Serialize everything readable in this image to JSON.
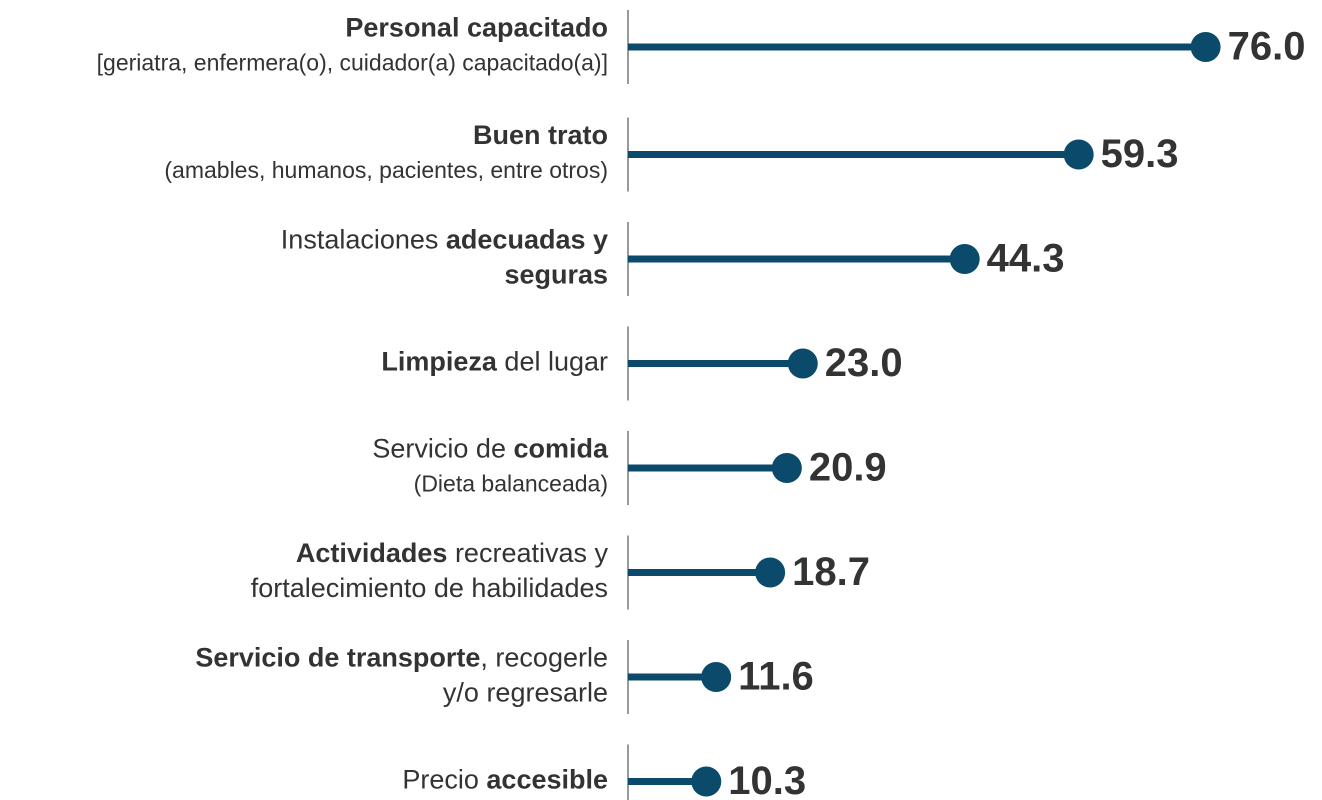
{
  "chart_data": {
    "type": "lollipop",
    "color": "#0b4a6b",
    "xlim": [
      0,
      80
    ],
    "categories": [
      {
        "lines": [
          {
            "segments": [
              {
                "text": "Personal capacitado",
                "bold": true
              }
            ]
          },
          {
            "small": true,
            "segments": [
              {
                "text": "[geriatra, enfermera(o), cuidador(a) capacitado(a)]",
                "bold": false
              }
            ]
          }
        ]
      },
      {
        "lines": [
          {
            "segments": [
              {
                "text": "Buen trato",
                "bold": true
              }
            ]
          },
          {
            "small": true,
            "segments": [
              {
                "text": "(amables, humanos, pacientes, entre otros)",
                "bold": false
              }
            ]
          }
        ]
      },
      {
        "lines": [
          {
            "segments": [
              {
                "text": "Instalaciones ",
                "bold": false
              },
              {
                "text": "adecuadas y",
                "bold": true
              }
            ]
          },
          {
            "segments": [
              {
                "text": "seguras",
                "bold": true
              }
            ]
          }
        ]
      },
      {
        "lines": [
          {
            "segments": [
              {
                "text": "Limpieza",
                "bold": true
              },
              {
                "text": " del lugar",
                "bold": false
              }
            ]
          }
        ]
      },
      {
        "lines": [
          {
            "segments": [
              {
                "text": "Servicio de ",
                "bold": false
              },
              {
                "text": "comida",
                "bold": true
              }
            ]
          },
          {
            "small": true,
            "segments": [
              {
                "text": "(Dieta balanceada)",
                "bold": false
              }
            ]
          }
        ]
      },
      {
        "lines": [
          {
            "segments": [
              {
                "text": "Actividades",
                "bold": true
              },
              {
                "text": " recreativas y",
                "bold": false
              }
            ]
          },
          {
            "segments": [
              {
                "text": "fortalecimiento de habilidades",
                "bold": false
              }
            ]
          }
        ]
      },
      {
        "lines": [
          {
            "segments": [
              {
                "text": "Servicio de transporte",
                "bold": true
              },
              {
                "text": ", recogerle",
                "bold": false
              }
            ]
          },
          {
            "segments": [
              {
                "text": "y/o regresarle",
                "bold": false
              }
            ]
          }
        ]
      },
      {
        "lines": [
          {
            "segments": [
              {
                "text": "Precio ",
                "bold": false
              },
              {
                "text": "accesible",
                "bold": true
              }
            ]
          }
        ]
      }
    ],
    "values": [
      76.0,
      59.3,
      44.3,
      23.0,
      20.9,
      18.7,
      11.6,
      10.3
    ],
    "value_labels": [
      "76.0",
      "59.3",
      "44.3",
      "23.0",
      "20.9",
      "18.7",
      "11.6",
      "10.3"
    ]
  }
}
